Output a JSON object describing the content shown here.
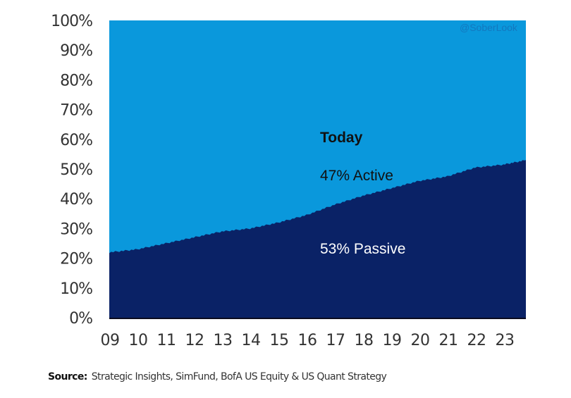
{
  "chart_data": {
    "type": "area",
    "stacked": true,
    "percent": true,
    "title": "",
    "xlabel": "",
    "ylabel": "",
    "ylim": [
      0,
      100
    ],
    "xlim": [
      2009,
      2023.8
    ],
    "grid": false,
    "x_tick_labels": [
      "09",
      "10",
      "11",
      "12",
      "13",
      "14",
      "15",
      "16",
      "17",
      "18",
      "19",
      "20",
      "21",
      "22",
      "23"
    ],
    "y_tick_labels": [
      "0%",
      "10%",
      "20%",
      "30%",
      "40%",
      "50%",
      "60%",
      "70%",
      "80%",
      "90%",
      "100%"
    ],
    "x": [
      2009,
      2010,
      2011,
      2012,
      2013,
      2014,
      2015,
      2016,
      2017,
      2018,
      2019,
      2020,
      2021,
      2022,
      2023,
      2023.8
    ],
    "series": [
      {
        "name": "Passive",
        "color": "#0a2266",
        "values": [
          22,
          23,
          25,
          27,
          29,
          30,
          32,
          34.5,
          38,
          41,
          43.5,
          46,
          47.5,
          50.5,
          51.5,
          53
        ]
      },
      {
        "name": "Active",
        "color": "#0a98dc",
        "values": [
          78,
          77,
          75,
          73,
          71,
          70,
          68,
          65.5,
          62,
          59,
          56.5,
          54,
          52.5,
          49.5,
          48.5,
          47
        ]
      }
    ],
    "annotations": {
      "title": "Today",
      "active": "47% Active",
      "passive": "53% Passive"
    },
    "watermark": "@SoberLook"
  },
  "source": {
    "label": "Source:",
    "text": "Strategic Insights,  SimFund,  BofA US Equity & US Quant  Strategy"
  }
}
